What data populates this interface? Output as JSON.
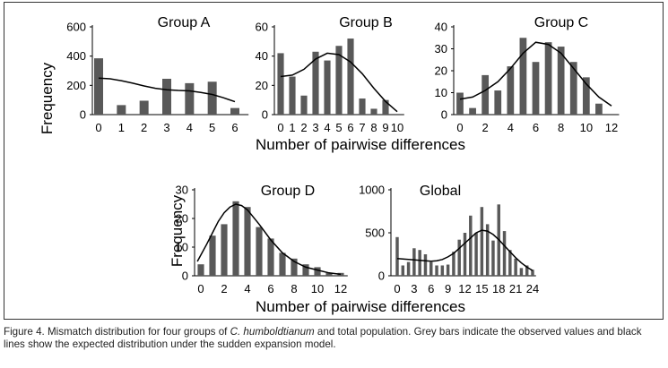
{
  "chart_data": [
    {
      "id": "A",
      "type": "bar+line",
      "title": "Group A",
      "categories": [
        0,
        1,
        2,
        3,
        4,
        5,
        6
      ],
      "values": [
        385,
        65,
        95,
        245,
        215,
        225,
        45
      ],
      "expected_x": [
        0,
        0.5,
        1,
        1.5,
        2,
        2.5,
        3,
        3.5,
        4,
        4.5,
        5,
        5.5,
        6
      ],
      "expected_y": [
        250,
        245,
        232,
        215,
        196,
        180,
        170,
        165,
        162,
        152,
        138,
        115,
        88
      ],
      "ylim": [
        0,
        600
      ],
      "yticks": [
        0,
        200,
        400,
        600
      ],
      "xticks": [
        "0",
        "1",
        "2",
        "3",
        "4",
        "5",
        "6"
      ]
    },
    {
      "id": "B",
      "type": "bar+line",
      "title": "Group B",
      "categories": [
        0,
        1,
        2,
        3,
        4,
        5,
        6,
        7,
        8,
        9
      ],
      "values": [
        42,
        26,
        13,
        43,
        37,
        47,
        52,
        11,
        4,
        10
      ],
      "expected_x": [
        0,
        1,
        2,
        3,
        4,
        5,
        6,
        7,
        8,
        9,
        10
      ],
      "expected_y": [
        26,
        27,
        31,
        38,
        42,
        41,
        36,
        28,
        18,
        9,
        2
      ],
      "ylim": [
        0,
        60
      ],
      "yticks": [
        0,
        20,
        40,
        60
      ],
      "xticks": [
        "0",
        "1",
        "2",
        "3",
        "4",
        "5",
        "6",
        "7",
        "8",
        "9",
        "10"
      ]
    },
    {
      "id": "C",
      "type": "bar+line",
      "title": "Group C",
      "categories": [
        0,
        1,
        2,
        3,
        4,
        5,
        6,
        7,
        8,
        9,
        10,
        11
      ],
      "values": [
        10,
        3,
        18,
        11,
        22,
        35,
        24,
        33,
        31,
        24,
        17,
        5
      ],
      "expected_x": [
        0,
        1,
        2,
        3,
        4,
        5,
        6,
        7,
        8,
        9,
        10,
        11,
        12
      ],
      "expected_y": [
        7,
        8,
        11,
        15,
        21,
        28,
        33,
        32,
        28,
        21,
        14,
        8,
        4
      ],
      "ylim": [
        0,
        40
      ],
      "yticks": [
        0,
        10,
        20,
        30,
        40
      ],
      "xticks": [
        "0",
        "2",
        "4",
        "6",
        "8",
        "10",
        "12"
      ]
    },
    {
      "id": "D",
      "type": "bar+line",
      "title": "Group D",
      "categories": [
        0,
        1,
        2,
        3,
        4,
        5,
        6,
        7,
        8,
        9,
        10,
        11,
        12
      ],
      "values": [
        4,
        14,
        18,
        26,
        24,
        17,
        13,
        8,
        6,
        4,
        3,
        1,
        1
      ],
      "expected_x": [
        -0.3,
        0.5,
        1,
        1.5,
        2,
        2.5,
        3,
        3.5,
        4,
        5,
        6,
        7,
        8,
        9,
        10,
        11,
        12
      ],
      "expected_y": [
        5,
        11,
        15,
        19,
        22,
        24,
        25,
        24.5,
        23,
        18,
        12.5,
        8,
        5,
        3,
        2,
        1,
        0.5
      ],
      "ylim": [
        0,
        30
      ],
      "yticks": [
        0,
        10,
        20,
        30
      ],
      "xticks": [
        "0",
        "2",
        "4",
        "6",
        "8",
        "10",
        "12"
      ]
    },
    {
      "id": "Global",
      "type": "bar+line",
      "title": "Global",
      "categories": [
        0,
        1,
        2,
        3,
        4,
        5,
        6,
        7,
        8,
        9,
        10,
        11,
        12,
        13,
        14,
        15,
        16,
        17,
        18,
        19,
        20,
        21,
        22,
        23,
        24
      ],
      "values": [
        450,
        120,
        160,
        320,
        300,
        250,
        160,
        120,
        120,
        130,
        280,
        420,
        500,
        700,
        500,
        800,
        600,
        410,
        830,
        520,
        300,
        200,
        90,
        120,
        70
      ],
      "expected_x": [
        0,
        1,
        2,
        3,
        4,
        5,
        6,
        7,
        8,
        9,
        10,
        11,
        12,
        13,
        14,
        15,
        16,
        17,
        18,
        19,
        20,
        21,
        22,
        23,
        24
      ],
      "expected_y": [
        200,
        195,
        190,
        185,
        180,
        175,
        170,
        175,
        190,
        220,
        260,
        320,
        380,
        440,
        500,
        530,
        520,
        480,
        420,
        350,
        280,
        210,
        150,
        100,
        60
      ],
      "ylim": [
        0,
        1000
      ],
      "yticks": [
        0,
        500,
        1000
      ],
      "xticks": [
        "0",
        "3",
        "6",
        "9",
        "12",
        "15",
        "18",
        "21",
        "24"
      ]
    }
  ],
  "labels": {
    "frequency": "Frequency",
    "x_axis": "Number of pairwise differences"
  },
  "caption": {
    "prefix": "Figure 4. Mismatch distribution for four groups of ",
    "species": "C. humboldtianum",
    "suffix": " and total population. Grey bars indicate the observed values and black lines show the expected distribution under the sudden expansion model."
  }
}
